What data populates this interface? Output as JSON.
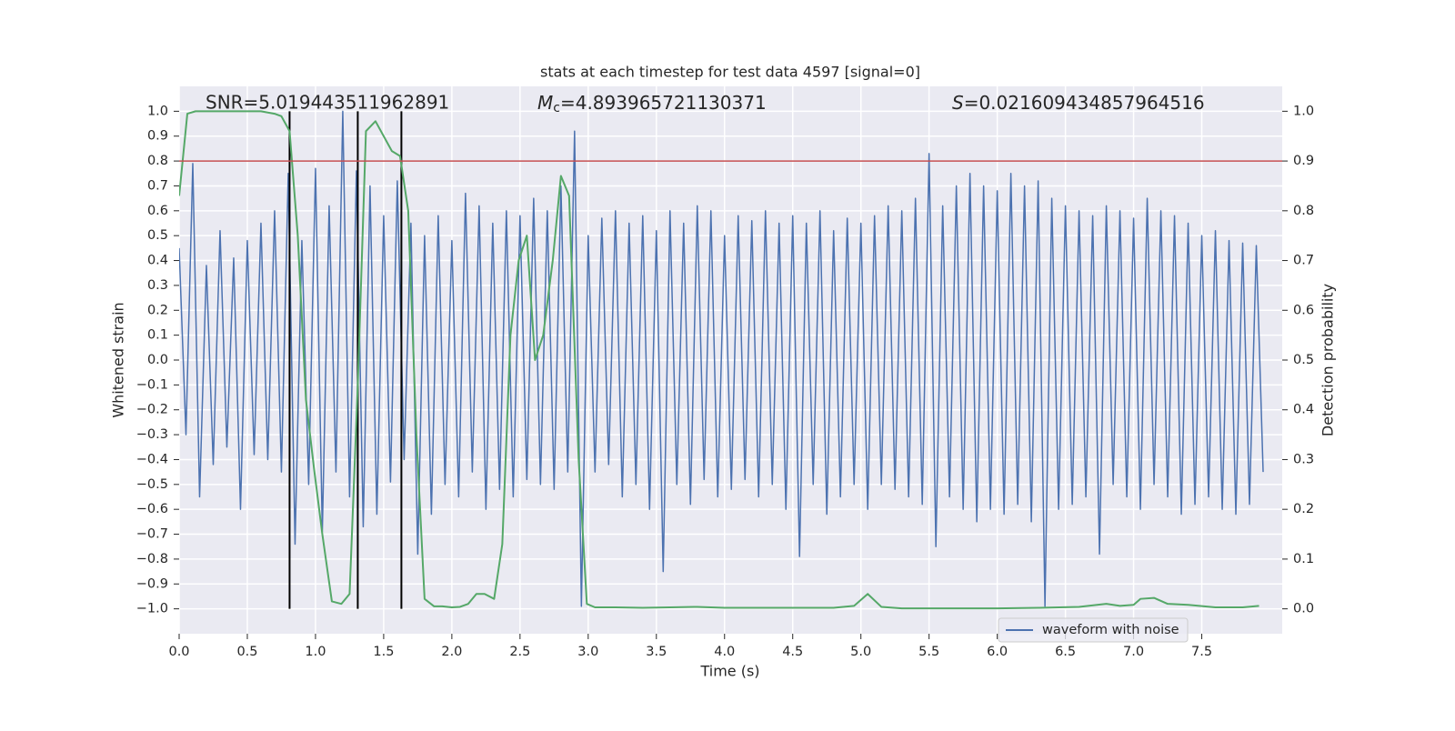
{
  "chart_data": {
    "type": "line",
    "title": "stats at each timestep for test data 4597 [signal=0]",
    "xlabel": "Time (s)",
    "ylabel": "Whitened strain",
    "y2label": "Detection probability",
    "grid": true,
    "legend": "lower right",
    "annotations": [
      {
        "text": "SNR=5.019443511962891"
      },
      {
        "symbol": "M",
        "subscript": "c",
        "text": "=4.893965721130371"
      },
      {
        "symbol": "S",
        "text": "=0.021609434857964516"
      }
    ],
    "xlim": [
      0,
      8.09
    ],
    "ylim": [
      -1.1,
      1.1
    ],
    "y2lim": [
      -0.05,
      1.05
    ],
    "xticks": [
      {
        "value": 0,
        "label": "0.0"
      },
      {
        "value": 0.5,
        "label": "0.5"
      },
      {
        "value": 1,
        "label": "1.0"
      },
      {
        "value": 1.5,
        "label": "1.5"
      },
      {
        "value": 2,
        "label": "2.0"
      },
      {
        "value": 2.5,
        "label": "2.5"
      },
      {
        "value": 3,
        "label": "3.0"
      },
      {
        "value": 3.5,
        "label": "3.5"
      },
      {
        "value": 4,
        "label": "4.0"
      },
      {
        "value": 4.5,
        "label": "4.5"
      },
      {
        "value": 5,
        "label": "5.0"
      },
      {
        "value": 5.5,
        "label": "5.5"
      },
      {
        "value": 6,
        "label": "6.0"
      },
      {
        "value": 6.5,
        "label": "6.5"
      },
      {
        "value": 7,
        "label": "7.0"
      },
      {
        "value": 7.5,
        "label": "7.5"
      }
    ],
    "yticks": [
      {
        "value": -1,
        "label": "−1.0"
      },
      {
        "value": -0.9,
        "label": "−0.9"
      },
      {
        "value": -0.8,
        "label": "−0.8"
      },
      {
        "value": -0.7,
        "label": "−0.7"
      },
      {
        "value": -0.6,
        "label": "−0.6"
      },
      {
        "value": -0.5,
        "label": "−0.5"
      },
      {
        "value": -0.4,
        "label": "−0.4"
      },
      {
        "value": -0.3,
        "label": "−0.3"
      },
      {
        "value": -0.2,
        "label": "−0.2"
      },
      {
        "value": -0.1,
        "label": "−0.1"
      },
      {
        "value": 0,
        "label": "0.0"
      },
      {
        "value": 0.1,
        "label": "0.1"
      },
      {
        "value": 0.2,
        "label": "0.2"
      },
      {
        "value": 0.3,
        "label": "0.3"
      },
      {
        "value": 0.4,
        "label": "0.4"
      },
      {
        "value": 0.5,
        "label": "0.5"
      },
      {
        "value": 0.6,
        "label": "0.6"
      },
      {
        "value": 0.7,
        "label": "0.7"
      },
      {
        "value": 0.8,
        "label": "0.8"
      },
      {
        "value": 0.9,
        "label": "0.9"
      },
      {
        "value": 1,
        "label": "1.0"
      }
    ],
    "y2ticks": [
      {
        "value": 0,
        "label": "0.0"
      },
      {
        "value": 0.1,
        "label": "0.1"
      },
      {
        "value": 0.2,
        "label": "0.2"
      },
      {
        "value": 0.3,
        "label": "0.3"
      },
      {
        "value": 0.4,
        "label": "0.4"
      },
      {
        "value": 0.5,
        "label": "0.5"
      },
      {
        "value": 0.6,
        "label": "0.6"
      },
      {
        "value": 0.7,
        "label": "0.7"
      },
      {
        "value": 0.8,
        "label": "0.8"
      },
      {
        "value": 0.9,
        "label": "0.9"
      },
      {
        "value": 1,
        "label": "1.0"
      }
    ],
    "hline": {
      "value": 0.9,
      "axis": "y2",
      "color": "#c44e52"
    },
    "vlines": {
      "values": [
        0.81,
        1.31,
        1.63
      ],
      "color": "#000000"
    },
    "series": [
      {
        "name": "waveform with noise",
        "color": "#4c72b0",
        "x": [
          0,
          0.05,
          0.1,
          0.15,
          0.2,
          0.25,
          0.3,
          0.35,
          0.4,
          0.45,
          0.5,
          0.55,
          0.6,
          0.65,
          0.7,
          0.75,
          0.8,
          0.85,
          0.9,
          0.95,
          1,
          1.05,
          1.1,
          1.15,
          1.2,
          1.25,
          1.3,
          1.35,
          1.4,
          1.45,
          1.5,
          1.55,
          1.6,
          1.65,
          1.7,
          1.75,
          1.8,
          1.85,
          1.9,
          1.95,
          2,
          2.05,
          2.1,
          2.15,
          2.2,
          2.25,
          2.3,
          2.35,
          2.4,
          2.45,
          2.5,
          2.55,
          2.6,
          2.65,
          2.7,
          2.75,
          2.8,
          2.85,
          2.9,
          2.95,
          3,
          3.05,
          3.1,
          3.15,
          3.2,
          3.25,
          3.3,
          3.35,
          3.4,
          3.45,
          3.5,
          3.55,
          3.6,
          3.65,
          3.7,
          3.75,
          3.8,
          3.85,
          3.9,
          3.95,
          4,
          4.05,
          4.1,
          4.15,
          4.2,
          4.25,
          4.3,
          4.35,
          4.4,
          4.45,
          4.5,
          4.55,
          4.6,
          4.65,
          4.7,
          4.75,
          4.8,
          4.85,
          4.9,
          4.95,
          5,
          5.05,
          5.1,
          5.15,
          5.2,
          5.25,
          5.3,
          5.35,
          5.4,
          5.45,
          5.5,
          5.55,
          5.6,
          5.65,
          5.7,
          5.75,
          5.8,
          5.85,
          5.9,
          5.95,
          6,
          6.05,
          6.1,
          6.15,
          6.2,
          6.25,
          6.3,
          6.35,
          6.4,
          6.45,
          6.5,
          6.55,
          6.6,
          6.65,
          6.7,
          6.75,
          6.8,
          6.85,
          6.9,
          6.95,
          7,
          7.05,
          7.1,
          7.15,
          7.2,
          7.25,
          7.3,
          7.35,
          7.4,
          7.45,
          7.5,
          7.55,
          7.6,
          7.65,
          7.7,
          7.75,
          7.8,
          7.85,
          7.9,
          7.95
        ],
        "values": [
          0.45,
          -0.3,
          0.79,
          -0.55,
          0.38,
          -0.42,
          0.52,
          -0.35,
          0.41,
          -0.6,
          0.48,
          -0.38,
          0.55,
          -0.4,
          0.6,
          -0.45,
          0.75,
          -0.74,
          0.48,
          -0.5,
          0.77,
          -0.69,
          0.62,
          -0.45,
          1.0,
          -0.55,
          0.76,
          -0.67,
          0.7,
          -0.62,
          0.58,
          -0.49,
          0.72,
          -0.4,
          0.55,
          -0.78,
          0.5,
          -0.62,
          0.58,
          -0.5,
          0.48,
          -0.55,
          0.67,
          -0.45,
          0.62,
          -0.6,
          0.55,
          -0.52,
          0.6,
          -0.55,
          0.58,
          -0.48,
          0.65,
          -0.5,
          0.6,
          -0.52,
          0.7,
          -0.45,
          0.92,
          -0.99,
          0.5,
          -0.45,
          0.57,
          -0.42,
          0.6,
          -0.55,
          0.55,
          -0.5,
          0.58,
          -0.6,
          0.52,
          -0.85,
          0.6,
          -0.5,
          0.55,
          -0.58,
          0.62,
          -0.48,
          0.6,
          -0.55,
          0.5,
          -0.52,
          0.58,
          -0.48,
          0.56,
          -0.55,
          0.6,
          -0.5,
          0.55,
          -0.6,
          0.58,
          -0.79,
          0.55,
          -0.5,
          0.6,
          -0.62,
          0.52,
          -0.55,
          0.57,
          -0.5,
          0.55,
          -0.6,
          0.58,
          -0.5,
          0.62,
          -0.52,
          0.6,
          -0.55,
          0.65,
          -0.58,
          0.83,
          -0.75,
          0.62,
          -0.55,
          0.7,
          -0.6,
          0.75,
          -0.65,
          0.7,
          -0.6,
          0.68,
          -0.62,
          0.75,
          -0.58,
          0.7,
          -0.65,
          0.72,
          -0.99,
          0.65,
          -0.6,
          0.62,
          -0.58,
          0.6,
          -0.55,
          0.58,
          -0.78,
          0.62,
          -0.5,
          0.6,
          -0.55,
          0.57,
          -0.6,
          0.65,
          -0.5,
          0.6,
          -0.55,
          0.58,
          -0.62,
          0.55,
          -0.58,
          0.5,
          -0.55,
          0.52,
          -0.6,
          0.48,
          -0.62,
          0.47,
          -0.58,
          0.46,
          -0.45
        ]
      },
      {
        "color": "#55a868",
        "axis": "y2",
        "x": [
          0,
          0.06,
          0.12,
          0.2,
          0.3,
          0.4,
          0.5,
          0.6,
          0.7,
          0.75,
          0.81,
          0.87,
          0.93,
          0.99,
          1.05,
          1.12,
          1.19,
          1.25,
          1.31,
          1.37,
          1.44,
          1.5,
          1.56,
          1.62,
          1.68,
          1.74,
          1.8,
          1.87,
          1.93,
          2.0,
          2.06,
          2.12,
          2.18,
          2.24,
          2.31,
          2.37,
          2.43,
          2.49,
          2.55,
          2.61,
          2.67,
          2.74,
          2.8,
          2.86,
          2.93,
          2.99,
          3.05,
          3.2,
          3.4,
          3.6,
          3.8,
          4.0,
          4.5,
          4.8,
          4.95,
          5.05,
          5.15,
          5.3,
          5.6,
          6.0,
          6.3,
          6.6,
          6.8,
          6.9,
          7.0,
          7.05,
          7.15,
          7.25,
          7.4,
          7.6,
          7.8,
          7.92
        ],
        "values": [
          0.83,
          0.995,
          1.0,
          1.0,
          1.0,
          1.0,
          1.0,
          1.0,
          0.995,
          0.99,
          0.96,
          0.75,
          0.42,
          0.28,
          0.15,
          0.015,
          0.01,
          0.03,
          0.45,
          0.96,
          0.98,
          0.95,
          0.92,
          0.91,
          0.8,
          0.35,
          0.02,
          0.005,
          0.005,
          0.003,
          0.004,
          0.01,
          0.03,
          0.03,
          0.02,
          0.13,
          0.55,
          0.7,
          0.75,
          0.5,
          0.55,
          0.7,
          0.87,
          0.83,
          0.3,
          0.01,
          0.003,
          0.003,
          0.002,
          0.003,
          0.004,
          0.002,
          0.002,
          0.002,
          0.006,
          0.03,
          0.004,
          0.001,
          0.001,
          0.001,
          0.002,
          0.004,
          0.01,
          0.006,
          0.008,
          0.02,
          0.022,
          0.01,
          0.008,
          0.003,
          0.003,
          0.006
        ]
      }
    ]
  }
}
